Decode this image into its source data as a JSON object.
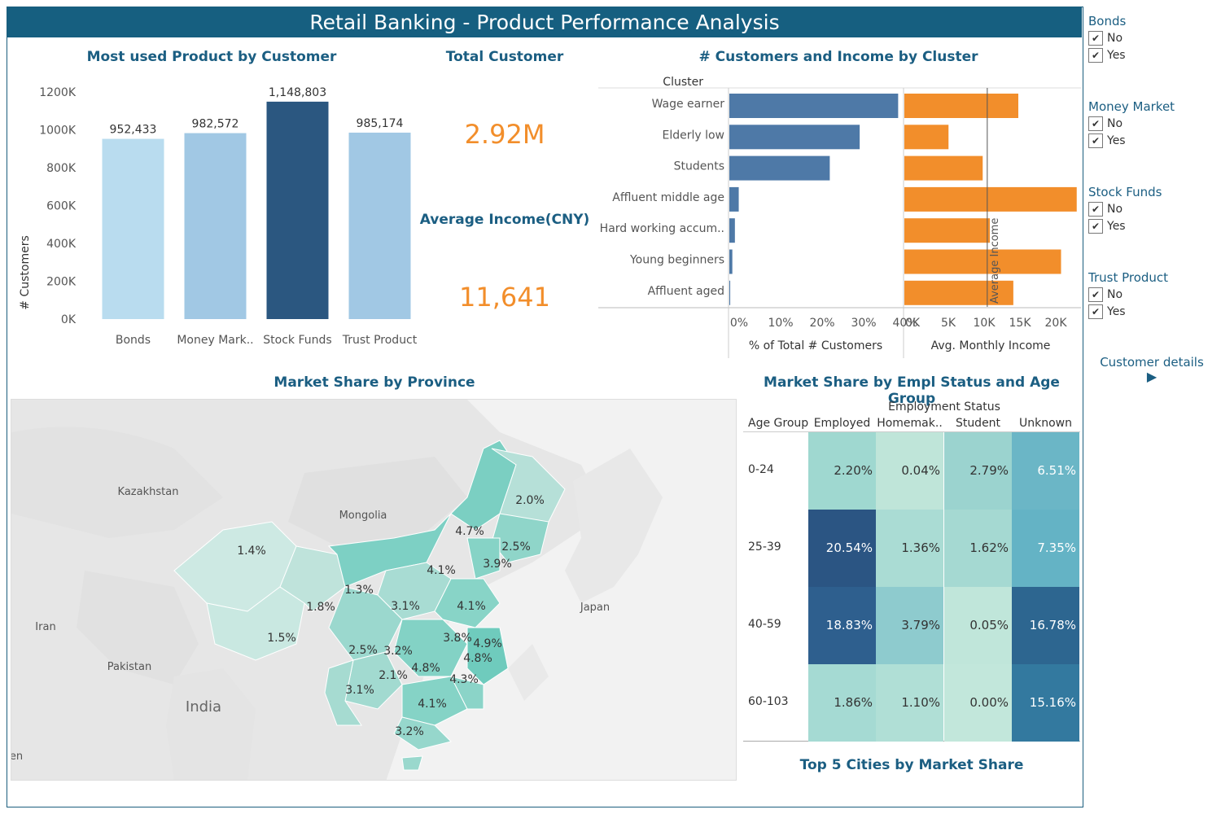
{
  "header": {
    "title": "Retail Banking - Product Performance Analysis"
  },
  "product_chart": {
    "title": "Most used Product by Customer",
    "ylabel": "# Customers",
    "yticks": [
      "0K",
      "200K",
      "400K",
      "600K",
      "800K",
      "1000K",
      "1200K"
    ],
    "chart_data": {
      "type": "bar",
      "categories": [
        "Bonds",
        "Money Mark..",
        "Stock Funds",
        "Trust Product"
      ],
      "values": [
        952433,
        982572,
        1148803,
        985174
      ],
      "value_labels": [
        "952,433",
        "982,572",
        "1,148,803",
        "985,174"
      ],
      "colors": [
        "#b9dcef",
        "#a1c8e4",
        "#2b5780",
        "#a1c8e4"
      ],
      "ylabel": "# Customers",
      "ylim": [
        0,
        1200000
      ]
    }
  },
  "kpis": {
    "total_customer_label": "Total Customer",
    "total_customer_value": "2.92M",
    "avg_income_label": "Average Income(CNY)",
    "avg_income_value": "11,641"
  },
  "cluster_chart": {
    "title": "# Customers and Income by Cluster",
    "row_header": "Cluster",
    "pct_axis_label": "% of Total # Customers",
    "income_axis_label": "Avg. Monthly Income",
    "pct_ticks": [
      "0%",
      "10%",
      "20%",
      "30%",
      "40%"
    ],
    "income_ticks": [
      "0K",
      "5K",
      "10K",
      "15K",
      "20K"
    ],
    "reference_label": "Average Income",
    "chart_data": {
      "type": "bar",
      "categories": [
        "Wage earner",
        "Elderly low",
        "Students",
        "Affluent middle age",
        "Hard working accum..",
        "Young beginners",
        "Affluent aged"
      ],
      "series": [
        {
          "name": "% of Total # Customers",
          "values": [
            39.5,
            30.5,
            23.5,
            2.2,
            1.3,
            0.7,
            0.2
          ],
          "color": "#4e79a7"
        },
        {
          "name": "Avg. Monthly Income",
          "values": [
            16000,
            6200,
            11000,
            24200,
            12000,
            22000,
            15300
          ],
          "color": "#f28e2b"
        }
      ],
      "pct_range": [
        0,
        40
      ],
      "income_range": [
        0,
        24000
      ],
      "reference_income": 11641
    }
  },
  "map": {
    "title": "Market Share by Province",
    "labels": [
      {
        "text": "Kazakhstan"
      },
      {
        "text": "Mongolia"
      },
      {
        "text": "Iran"
      },
      {
        "text": "Pakistan"
      },
      {
        "text": "India"
      },
      {
        "text": "Japan"
      },
      {
        "text": "en"
      }
    ],
    "province_values": [
      "2.0%",
      "4.7%",
      "2.5%",
      "3.9%",
      "4.1%",
      "1.4%",
      "1.3%",
      "3.1%",
      "4.1%",
      "1.8%",
      "1.5%",
      "3.8%",
      "4.9%",
      "2.5%",
      "3.2%",
      "4.8%",
      "4.8%",
      "2.1%",
      "4.3%",
      "3.1%",
      "4.1%",
      "3.2%"
    ]
  },
  "heatmap": {
    "title": "Market Share by Empl Status and Age Group",
    "col_group_header": "Employment Status",
    "row_header": "Age Group",
    "columns": [
      "Employed",
      "Homemak..",
      "Student",
      "Unknown"
    ],
    "rows": [
      {
        "label": "0-24",
        "values": [
          "2.20%",
          "0.04%",
          "2.79%",
          "6.51%"
        ],
        "colors": [
          "#9fd8d0",
          "#bfe5d9",
          "#9bd3cf",
          "#6bb6c6"
        ]
      },
      {
        "label": "25-39",
        "values": [
          "20.54%",
          "1.36%",
          "1.62%",
          "7.35%"
        ],
        "colors": [
          "#2b5583",
          "#aadcd4",
          "#a5d9d2",
          "#64b3c5"
        ]
      },
      {
        "label": "40-59",
        "values": [
          "18.83%",
          "3.79%",
          "0.05%",
          "16.78%"
        ],
        "colors": [
          "#2e5f8e",
          "#8ecbce",
          "#c0e6da",
          "#2d6690"
        ]
      },
      {
        "label": "60-103",
        "values": [
          "1.86%",
          "1.10%",
          "0.00%",
          "15.16%"
        ],
        "colors": [
          "#a5dad3",
          "#b0dfd6",
          "#c2e7db",
          "#33799f"
        ]
      }
    ]
  },
  "cities": {
    "title": "Top 5 Cities by Market Share"
  },
  "filters": [
    {
      "title": "Bonds",
      "options": [
        "No",
        "Yes"
      ]
    },
    {
      "title": "Money Market",
      "options": [
        "No",
        "Yes"
      ]
    },
    {
      "title": "Stock Funds",
      "options": [
        "No",
        "Yes"
      ]
    },
    {
      "title": "Trust Product",
      "options": [
        "No",
        "Yes"
      ]
    }
  ],
  "sidebar": {
    "details_label": "Customer details",
    "check_glyph": "✔",
    "arrow_glyph": "▶"
  }
}
